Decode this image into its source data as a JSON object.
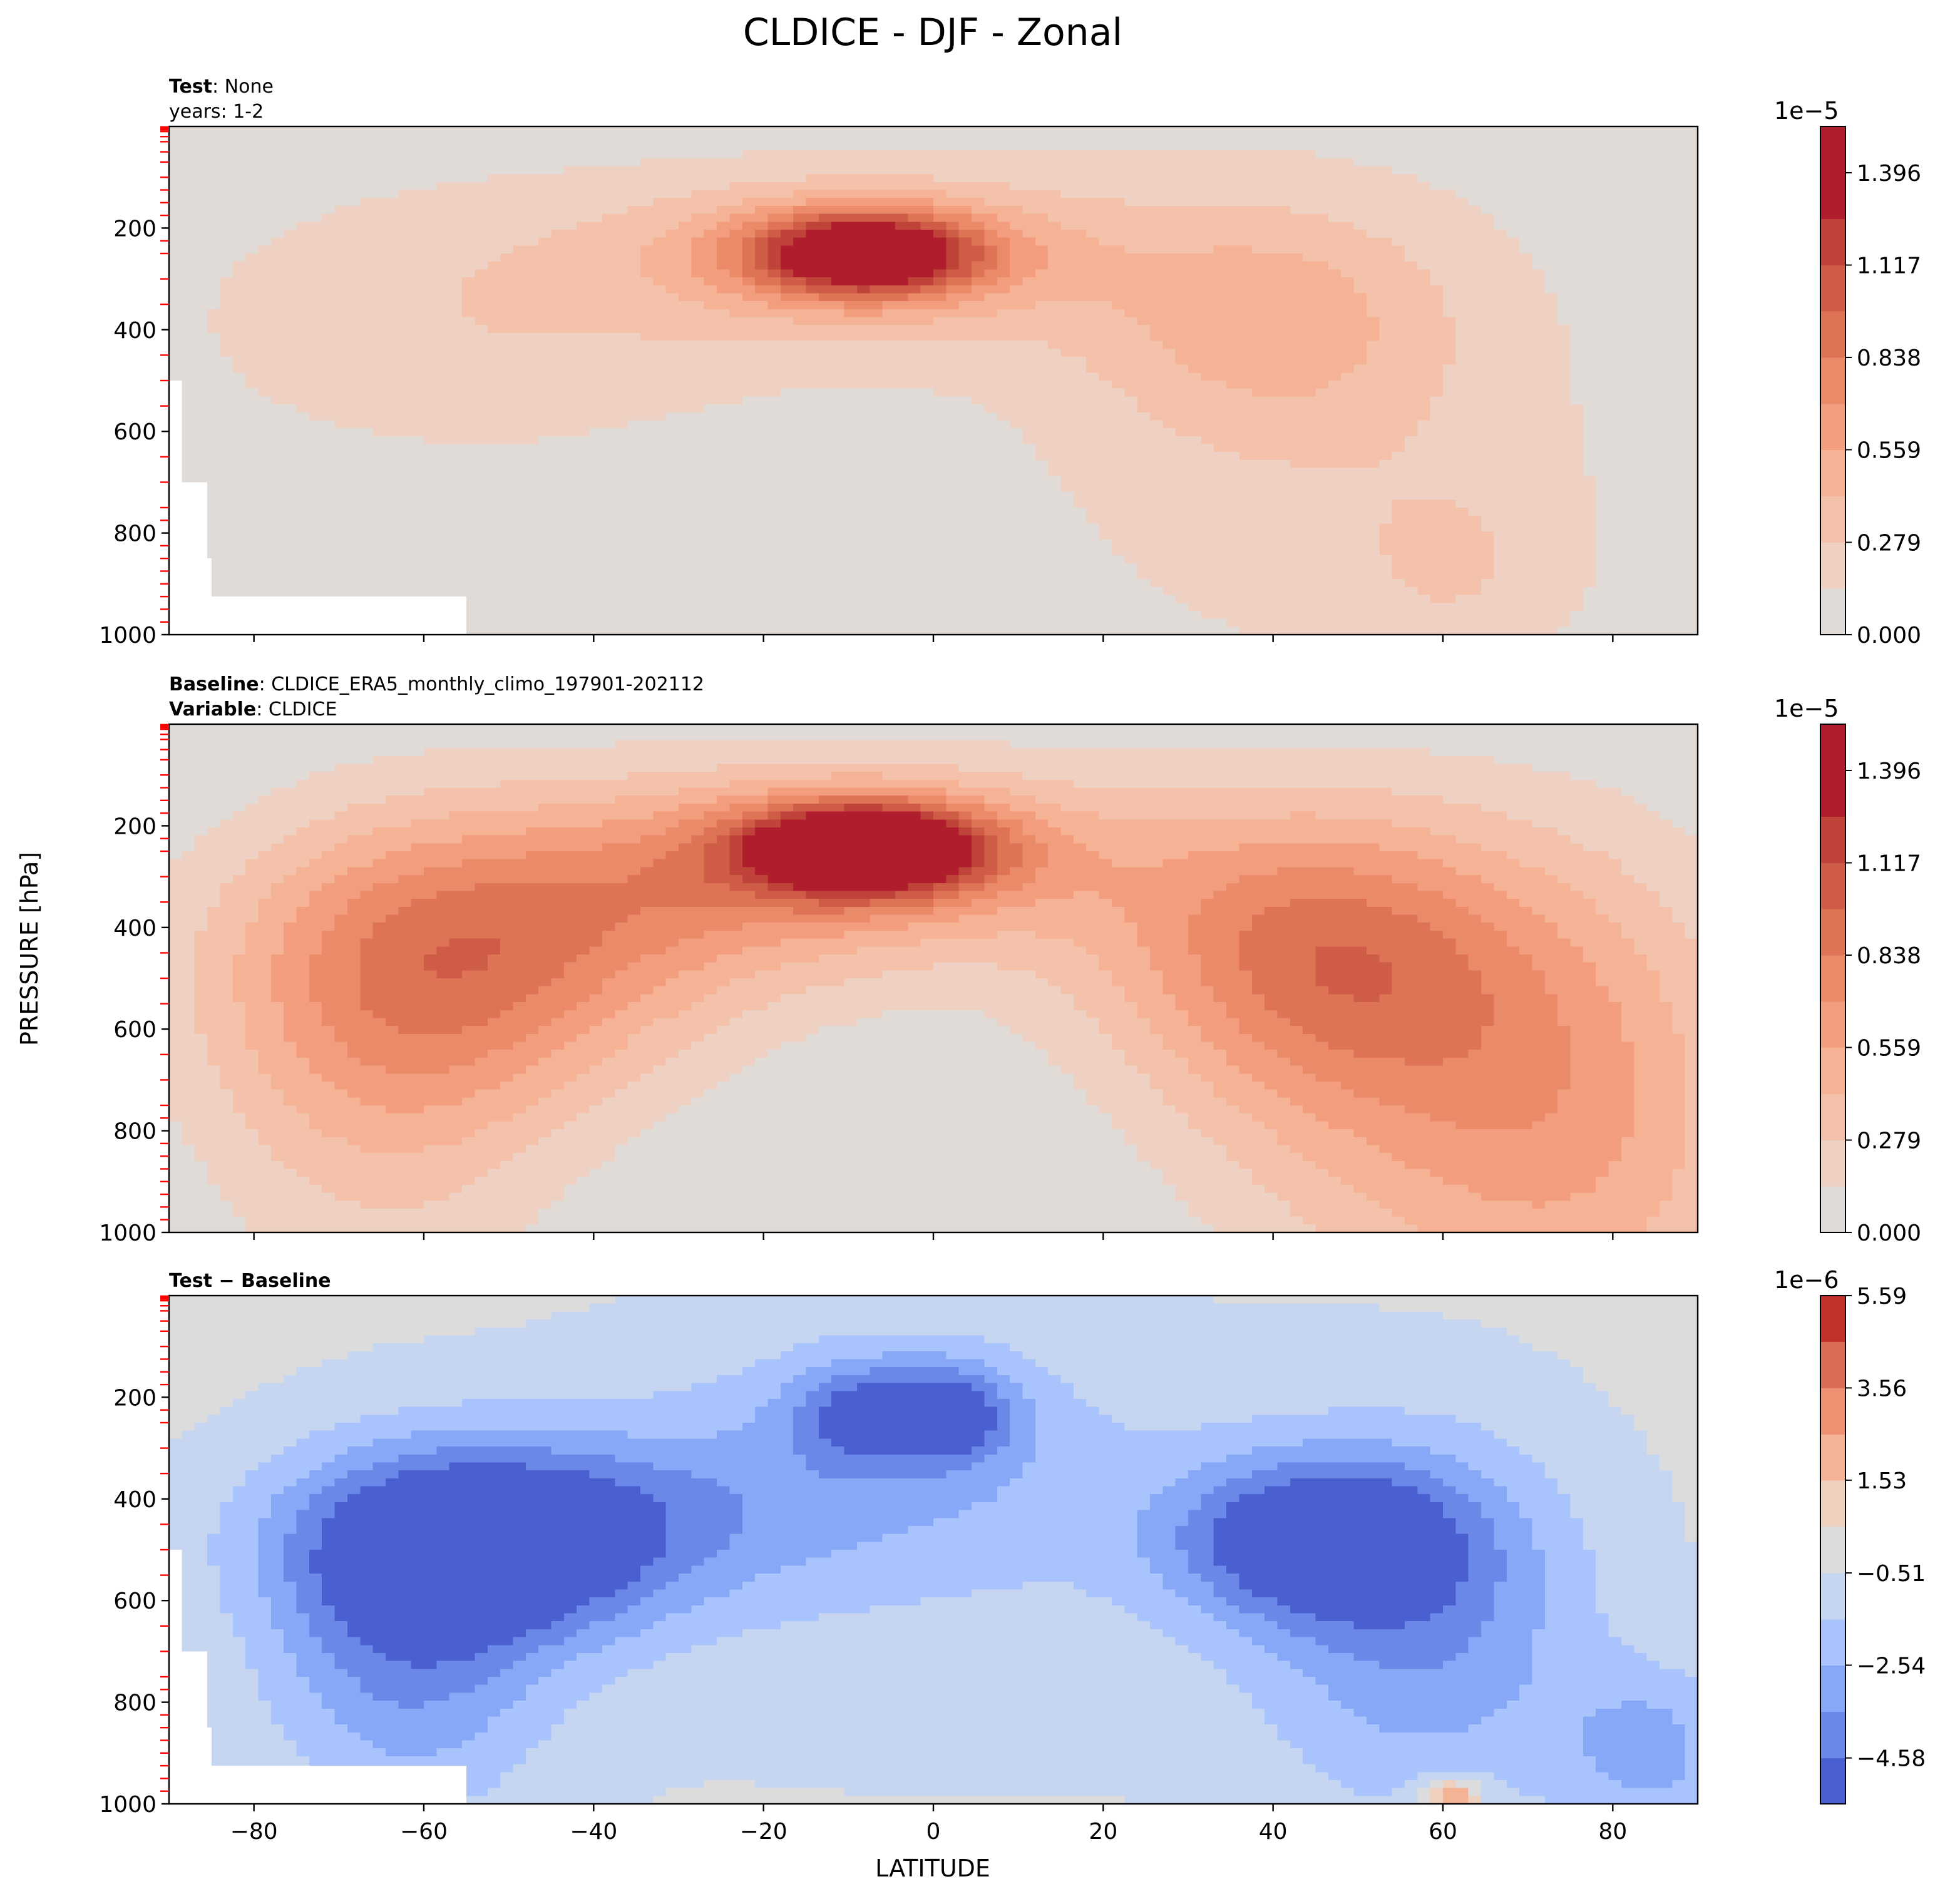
{
  "chart_data": {
    "type": "contourf",
    "title": "CLDICE - DJF - Zonal",
    "xlabel": "LATITUDE",
    "ylabel": "PRESSURE [hPa]",
    "xlim": [
      -90,
      90
    ],
    "ylim": [
      1000,
      0
    ],
    "x_ticks": [
      -80,
      -60,
      -40,
      -20,
      0,
      20,
      40,
      60,
      80
    ],
    "x_tick_labels": [
      "−80",
      "−60",
      "−40",
      "−20",
      "0",
      "20",
      "40",
      "60",
      "80"
    ],
    "y_ticks": [
      200,
      400,
      600,
      800,
      1000
    ],
    "y_tick_labels": [
      "200",
      "400",
      "600",
      "800",
      "1000"
    ],
    "minor_y_ticks_hpa": [
      1,
      3,
      5,
      7,
      10,
      20,
      30,
      50,
      70,
      100,
      125,
      150,
      175,
      225,
      250,
      300,
      350,
      450,
      500,
      550,
      650,
      700,
      750,
      775,
      825,
      850,
      875,
      900,
      925,
      950,
      975
    ],
    "minor_tick_color": "#ff0000",
    "panels": [
      {
        "id": "test",
        "header": [
          {
            "bold": "Test",
            "sep": ": ",
            "text": "None"
          },
          {
            "bold": "",
            "sep": "",
            "text": "years: 1-2"
          }
        ],
        "colorbar": {
          "exponent": "1e−5",
          "tick_labels": [
            "0.000",
            "0.279",
            "0.559",
            "0.838",
            "1.117",
            "1.396"
          ],
          "tick_values": [
            0.0,
            0.279,
            0.559,
            0.838,
            1.117,
            1.396
          ],
          "levels": [
            0.0,
            0.14,
            0.279,
            0.419,
            0.559,
            0.698,
            0.838,
            0.978,
            1.117,
            1.257,
            1.396,
            1.536
          ],
          "colors": [
            "#e0dbd6",
            "#efd1c3",
            "#f4c2ab",
            "#f5b294",
            "#f29e7e",
            "#ea8a69",
            "#de7356",
            "#cf5c46",
            "#bf4338",
            "#b01d2c",
            "#b01d2c"
          ]
        },
        "features": [
          {
            "lat": -8,
            "p": 250,
            "slat": 9,
            "sp": 55,
            "amp": 1.15
          },
          {
            "lat": -8,
            "p": 255,
            "slat": 16,
            "sp": 90,
            "amp": 0.42
          },
          {
            "lat": -5,
            "p": 250,
            "slat": 30,
            "sp": 140,
            "amp": 0.22
          },
          {
            "lat": -55,
            "p": 390,
            "slat": 28,
            "sp": 220,
            "amp": 0.24
          },
          {
            "lat": 40,
            "p": 390,
            "slat": 14,
            "sp": 150,
            "amp": 0.3
          },
          {
            "lat": 45,
            "p": 600,
            "slat": 30,
            "sp": 420,
            "amp": 0.22
          },
          {
            "lat": 62,
            "p": 880,
            "slat": 10,
            "sp": 140,
            "amp": 0.15
          }
        ],
        "missing_region": "bottom-left"
      },
      {
        "id": "baseline",
        "header": [
          {
            "bold": "Baseline",
            "sep": ": ",
            "text": "CLDICE_ERA5_monthly_climo_197901-202112"
          },
          {
            "bold": "Variable",
            "sep": ": ",
            "text": "CLDICE"
          }
        ],
        "colorbar": {
          "exponent": "1e−5",
          "tick_labels": [
            "0.000",
            "0.279",
            "0.559",
            "0.838",
            "1.117",
            "1.396"
          ],
          "tick_values": [
            0.0,
            0.279,
            0.559,
            0.838,
            1.117,
            1.396
          ],
          "levels": [
            0.0,
            0.14,
            0.279,
            0.419,
            0.559,
            0.698,
            0.838,
            0.978,
            1.117,
            1.257,
            1.396,
            1.536
          ],
          "colors": [
            "#e0dbd6",
            "#efd1c3",
            "#f4c2ab",
            "#f5b294",
            "#f29e7e",
            "#ea8a69",
            "#de7356",
            "#cf5c46",
            "#bf4338",
            "#b01d2c",
            "#b01d2c"
          ]
        },
        "features": [
          {
            "lat": -8,
            "p": 245,
            "slat": 9,
            "sp": 55,
            "amp": 1.35
          },
          {
            "lat": -8,
            "p": 250,
            "slat": 16,
            "sp": 95,
            "amp": 0.5
          },
          {
            "lat": -5,
            "p": 260,
            "slat": 30,
            "sp": 150,
            "amp": 0.3
          },
          {
            "lat": -55,
            "p": 480,
            "slat": 20,
            "sp": 200,
            "amp": 0.62
          },
          {
            "lat": -65,
            "p": 700,
            "slat": 15,
            "sp": 300,
            "amp": 0.35
          },
          {
            "lat": 45,
            "p": 450,
            "slat": 18,
            "sp": 200,
            "amp": 0.72
          },
          {
            "lat": 60,
            "p": 750,
            "slat": 20,
            "sp": 300,
            "amp": 0.45
          },
          {
            "lat": 80,
            "p": 800,
            "slat": 15,
            "sp": 400,
            "amp": 0.3
          },
          {
            "lat": -30,
            "p": 350,
            "slat": 25,
            "sp": 150,
            "amp": 0.3
          }
        ],
        "missing_region": "none"
      },
      {
        "id": "diff",
        "header": [
          {
            "bold": "Test − Baseline",
            "sep": "",
            "text": ""
          }
        ],
        "colorbar": {
          "exponent": "1e−6",
          "tick_labels": [
            "−4.58",
            "−2.54",
            "−0.51",
            "1.53",
            "3.56",
            "5.59"
          ],
          "tick_values": [
            -4.58,
            -2.54,
            -0.51,
            1.53,
            3.56,
            5.59
          ],
          "levels": [
            -5.59,
            -4.58,
            -3.56,
            -2.54,
            -1.53,
            -0.51,
            0.51,
            1.53,
            2.54,
            3.56,
            4.58,
            5.59
          ],
          "colors": [
            "#4a5fd0",
            "#6a88e8",
            "#87a7f7",
            "#a9c4fc",
            "#c6d6f1",
            "#dcdcdc",
            "#efd0bf",
            "#f5b396",
            "#ec9272",
            "#db6b54",
            "#c1322d"
          ]
        },
        "features": [
          {
            "lat": -52,
            "p": 500,
            "slat": 16,
            "sp": 130,
            "amp": -5.0
          },
          {
            "lat": -62,
            "p": 700,
            "slat": 12,
            "sp": 230,
            "amp": -3.2
          },
          {
            "lat": -45,
            "p": 420,
            "slat": 22,
            "sp": 120,
            "amp": -1.5
          },
          {
            "lat": 45,
            "p": 480,
            "slat": 12,
            "sp": 110,
            "amp": -5.2
          },
          {
            "lat": 58,
            "p": 650,
            "slat": 14,
            "sp": 260,
            "amp": -3.0
          },
          {
            "lat": 85,
            "p": 900,
            "slat": 8,
            "sp": 120,
            "amp": -2.5
          },
          {
            "lat": -8,
            "p": 230,
            "slat": 6,
            "sp": 70,
            "amp": -3.2
          },
          {
            "lat": 3,
            "p": 230,
            "slat": 5,
            "sp": 70,
            "amp": -3.2
          },
          {
            "lat": -5,
            "p": 330,
            "slat": 20,
            "sp": 180,
            "amp": -1.8
          },
          {
            "lat": 0,
            "p": 500,
            "slat": 60,
            "sp": 450,
            "amp": -0.9
          },
          {
            "lat": 61,
            "p": 985,
            "slat": 2.5,
            "sp": 25,
            "amp": 4.0
          }
        ],
        "missing_region": "bottom-left"
      }
    ]
  }
}
